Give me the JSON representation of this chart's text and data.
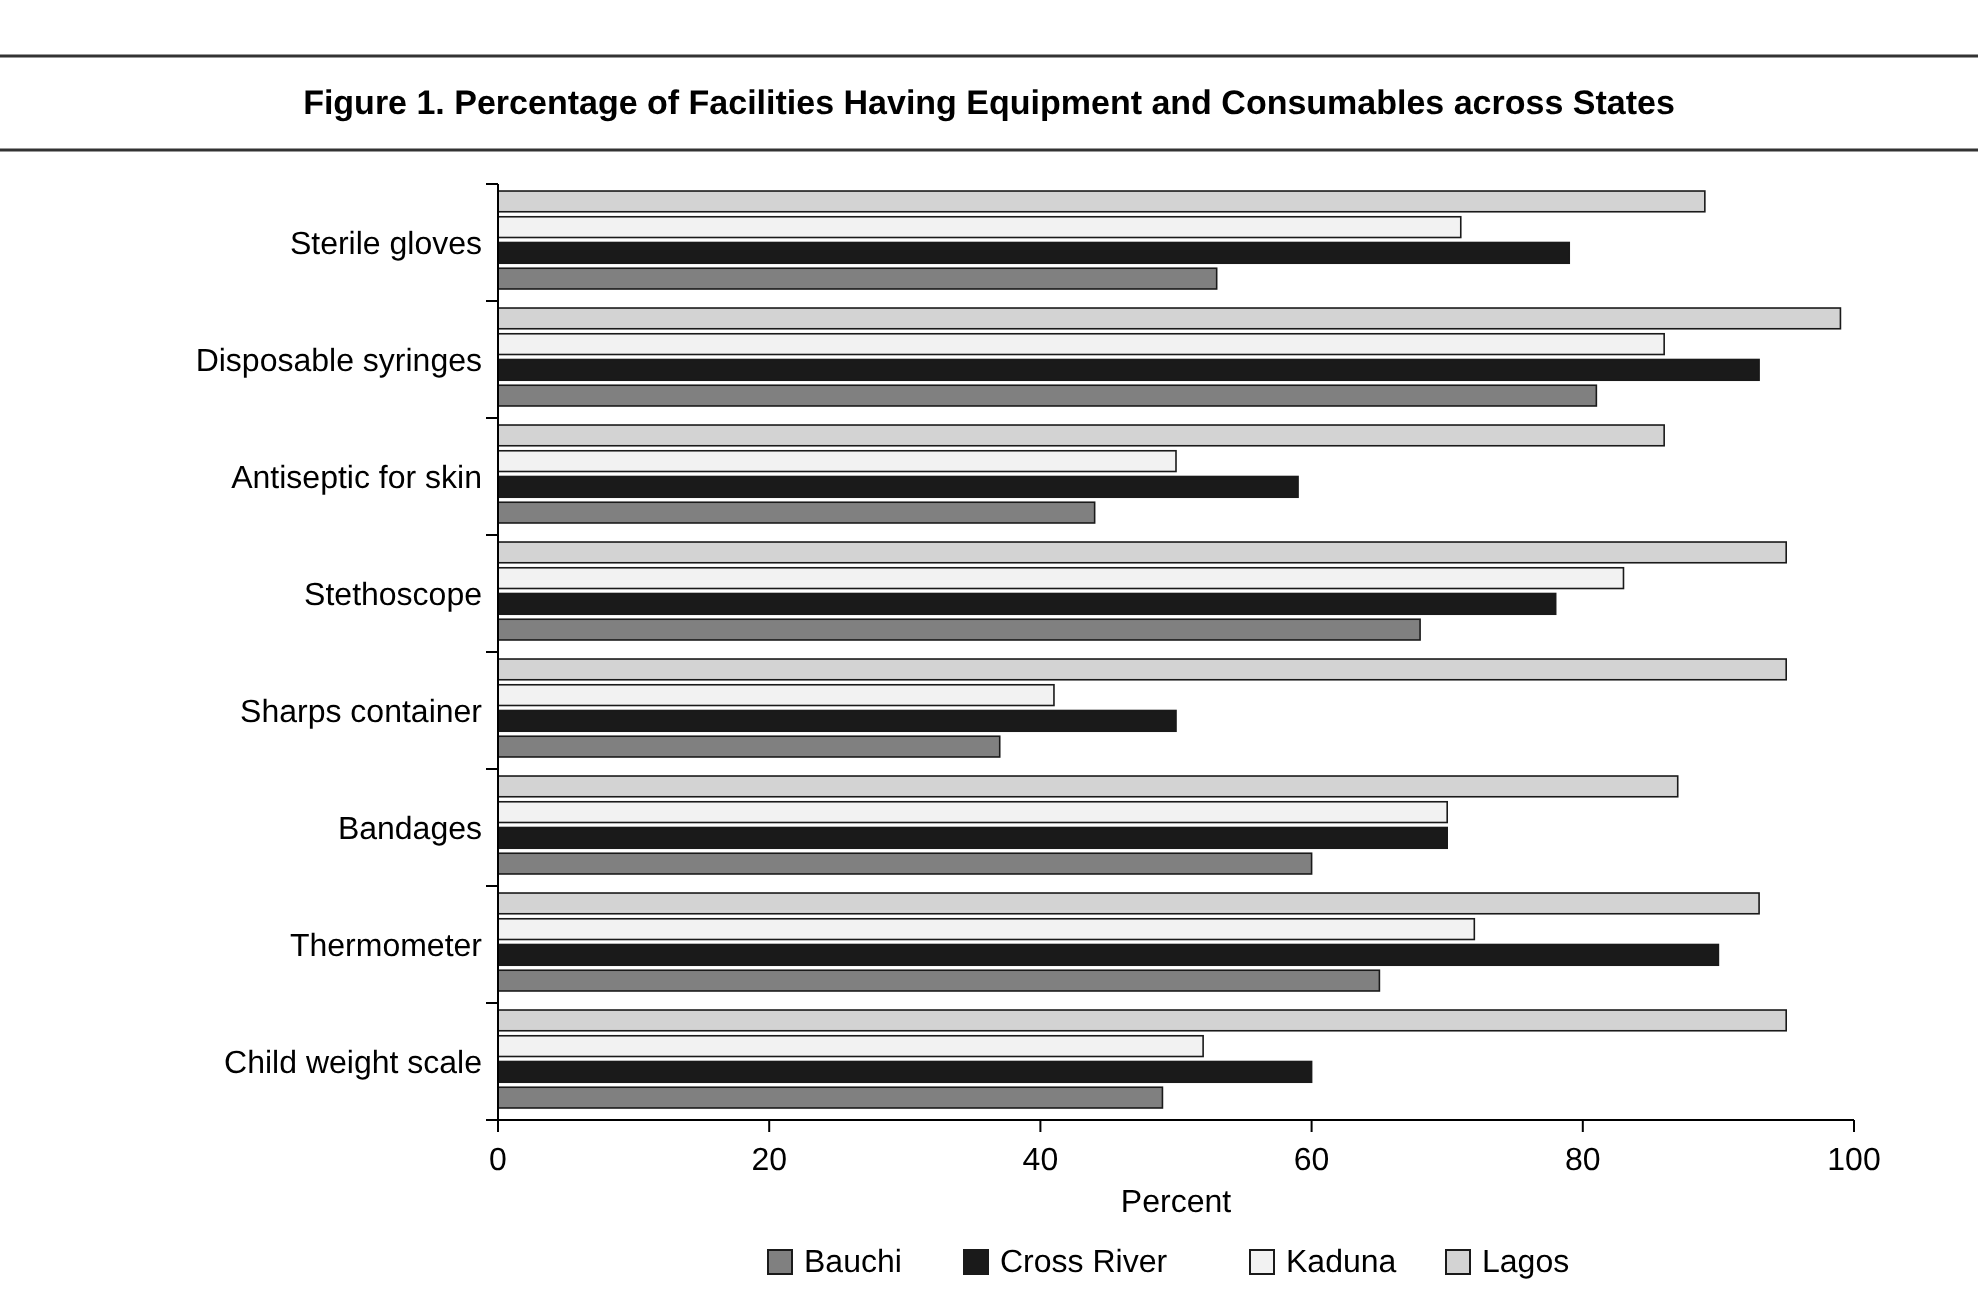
{
  "chart_data": {
    "type": "bar",
    "orientation": "horizontal",
    "title": "Figure 1. Percentage of Facilities Having Equipment and Consumables across States",
    "xlabel": "Percent",
    "categories": [
      "Sterile gloves",
      "Disposable syringes",
      "Antiseptic for skin",
      "Stethoscope",
      "Sharps container",
      "Bandages",
      "Thermometer",
      "Child weight scale"
    ],
    "series": [
      {
        "name": "Lagos",
        "color": "#d3d3d3",
        "values": [
          89,
          99,
          86,
          95,
          95,
          87,
          93,
          95
        ]
      },
      {
        "name": "Kaduna",
        "color": "#f2f2f2",
        "values": [
          71,
          86,
          50,
          83,
          41,
          70,
          72,
          52
        ]
      },
      {
        "name": "Cross River",
        "color": "#1a1a1a",
        "values": [
          79,
          93,
          59,
          78,
          50,
          70,
          90,
          60
        ]
      },
      {
        "name": "Bauchi",
        "color": "#808080",
        "values": [
          53,
          81,
          44,
          68,
          37,
          60,
          65,
          49
        ]
      }
    ],
    "xlim": [
      0,
      100
    ],
    "xticks": [
      0,
      20,
      40,
      60,
      80,
      100
    ],
    "grid": false,
    "legend": "bottom"
  }
}
